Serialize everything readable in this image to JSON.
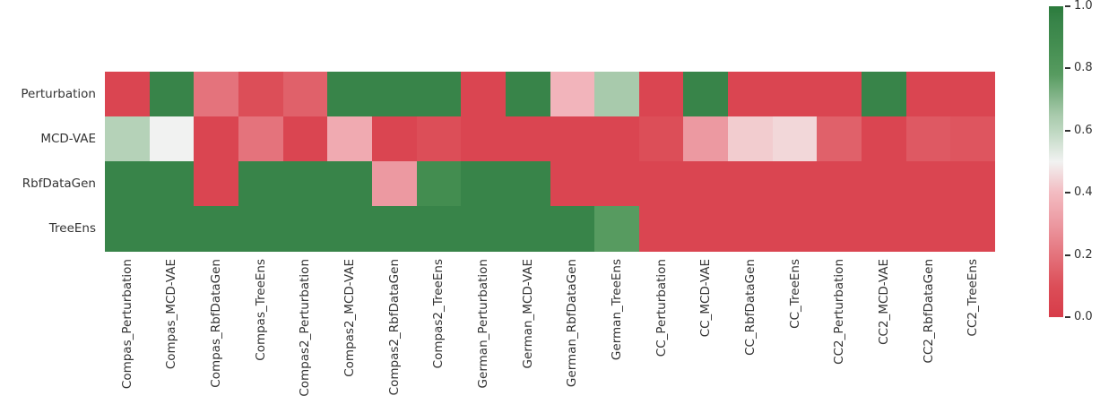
{
  "figure": {
    "background": "#ffffff",
    "text_color": "#333333"
  },
  "chart_data": {
    "type": "heatmap",
    "title": "",
    "xlabel": "",
    "ylabel": "",
    "grid": false,
    "cell_annotations": false,
    "y_categories": [
      "Perturbation",
      "MCD-VAE",
      "RbfDataGen",
      "TreeEns"
    ],
    "x_categories": [
      "Compas_Perturbation",
      "Compas_MCD-VAE",
      "Compas_RbfDataGen",
      "Compas_TreeEns",
      "Compas2_Perturbation",
      "Compas2_MCD-VAE",
      "Compas2_RbfDataGen",
      "Compas2_TreeEns",
      "German_Perturbation",
      "German_MCD-VAE",
      "German_RbfDataGen",
      "German_TreeEns",
      "CC_Perturbation",
      "CC_MCD-VAE",
      "CC_RbfDataGen",
      "CC_TreeEns",
      "CC2_Perturbation",
      "CC2_MCD-VAE",
      "CC2_RbfDataGen",
      "CC2_TreeEns"
    ],
    "values": [
      [
        0.05,
        0.95,
        0.2,
        0.1,
        0.15,
        0.95,
        0.95,
        0.95,
        0.05,
        0.95,
        0.38,
        0.65,
        0.05,
        0.95,
        0.05,
        0.05,
        0.05,
        0.95,
        0.05,
        0.05
      ],
      [
        0.62,
        0.5,
        0.05,
        0.2,
        0.05,
        0.35,
        0.05,
        0.1,
        0.05,
        0.05,
        0.05,
        0.05,
        0.1,
        0.3,
        0.43,
        0.45,
        0.15,
        0.05,
        0.13,
        0.12
      ],
      [
        0.95,
        0.95,
        0.05,
        0.95,
        0.95,
        0.95,
        0.3,
        0.88,
        0.95,
        0.95,
        0.05,
        0.05,
        0.05,
        0.05,
        0.05,
        0.05,
        0.05,
        0.05,
        0.05,
        0.05
      ],
      [
        0.95,
        0.95,
        0.95,
        0.95,
        0.95,
        0.95,
        0.95,
        0.95,
        0.95,
        0.95,
        0.95,
        0.78,
        0.05,
        0.05,
        0.05,
        0.05,
        0.05,
        0.05,
        0.05,
        0.05
      ]
    ],
    "vmin": 0.0,
    "vmax": 1.0,
    "colormap_anchors": [
      [
        0.0,
        "#d73c49"
      ],
      [
        0.1,
        "#dc4e58"
      ],
      [
        0.2,
        "#e4737c"
      ],
      [
        0.3,
        "#ec99a1"
      ],
      [
        0.4,
        "#f3bbc1"
      ],
      [
        0.5,
        "#f1f2f1"
      ],
      [
        0.6,
        "#bdd7c0"
      ],
      [
        0.65,
        "#a8caac"
      ],
      [
        0.78,
        "#579b60"
      ],
      [
        0.88,
        "#438d50"
      ],
      [
        0.95,
        "#388449"
      ],
      [
        1.0,
        "#2b7b3c"
      ]
    ],
    "colorbar": {
      "position": "right",
      "tick_values": [
        1.0,
        0.8,
        0.6,
        0.4,
        0.2,
        0.0
      ],
      "tick_labels": [
        "1.0",
        "0.8",
        "0.6",
        "0.4",
        "0.2",
        "0.0"
      ]
    }
  }
}
